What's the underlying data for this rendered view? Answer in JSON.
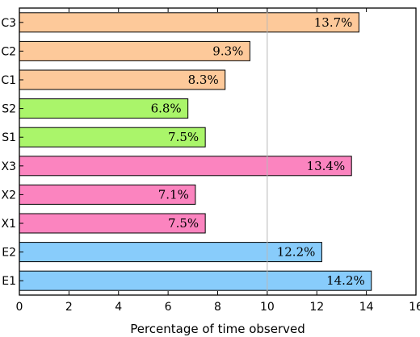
{
  "chart_data": {
    "type": "bar",
    "orientation": "horizontal",
    "title": "",
    "xlabel": "Percentage of time observed",
    "ylabel": "",
    "xlim": [
      0,
      16
    ],
    "xticks": [
      0,
      2,
      4,
      6,
      8,
      10,
      12,
      14,
      16
    ],
    "reference_line_x": 10,
    "grid": false,
    "legend": "none",
    "categories": [
      "C3",
      "C2",
      "C1",
      "S2",
      "S1",
      "X3",
      "X2",
      "X1",
      "E2",
      "E1"
    ],
    "values": [
      13.7,
      9.3,
      8.3,
      6.8,
      7.5,
      13.4,
      7.1,
      7.5,
      12.2,
      14.2
    ],
    "data_labels": [
      "13.7%",
      "9.3%",
      "8.3%",
      "6.8%",
      "7.5%",
      "13.4%",
      "7.1%",
      "7.5%",
      "12.2%",
      "14.2%"
    ],
    "colors": [
      "#fdc99a",
      "#fdc99a",
      "#fdc99a",
      "#aaf56a",
      "#aaf56a",
      "#fb84bf",
      "#fb84bf",
      "#fb84bf",
      "#88ccfb",
      "#88ccfb"
    ]
  }
}
